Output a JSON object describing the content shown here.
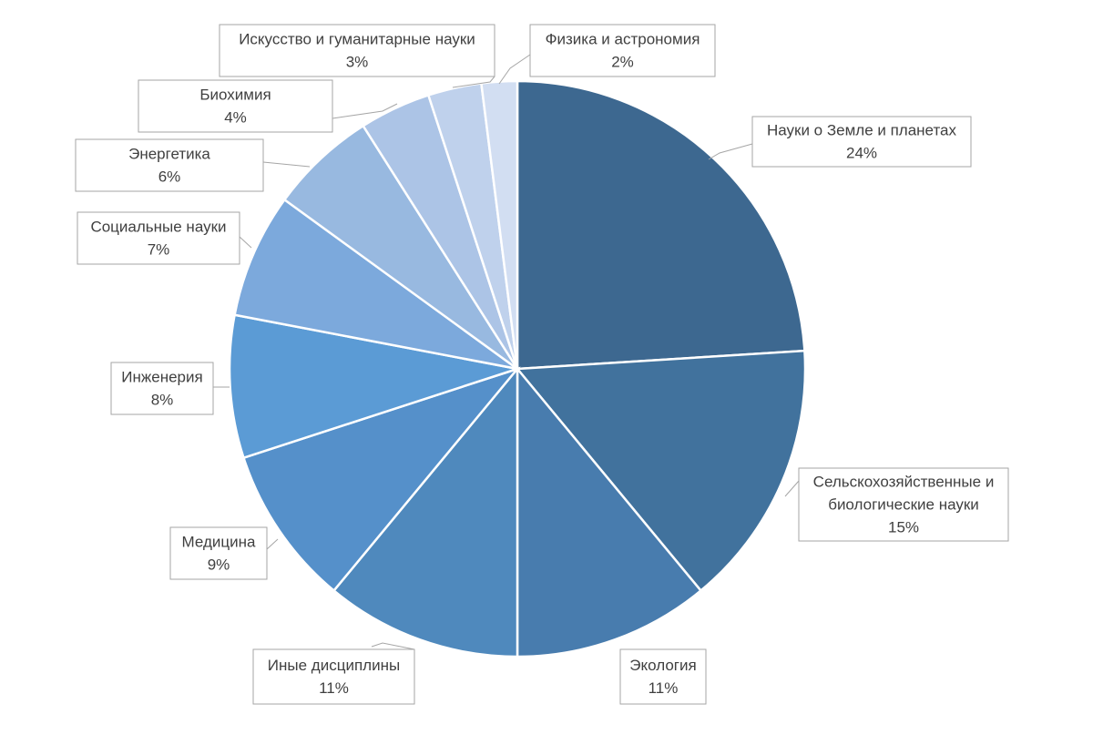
{
  "chart_data": {
    "type": "pie",
    "title": "",
    "slices": [
      {
        "label": "Науки о Земле и планетах",
        "value": 24,
        "value_label": "24%",
        "color": "#3d6890"
      },
      {
        "label": "Сельскохозяйственные и биологические науки",
        "value": 15,
        "value_label": "15%",
        "color": "#41729d"
      },
      {
        "label": "Экология",
        "value": 11,
        "value_label": "11%",
        "color": "#487cae"
      },
      {
        "label": "Иные дисциплины",
        "value": 11,
        "value_label": "11%",
        "color": "#4f89bd"
      },
      {
        "label": "Медицина",
        "value": 9,
        "value_label": "9%",
        "color": "#5590ca"
      },
      {
        "label": "Инженерия",
        "value": 8,
        "value_label": "8%",
        "color": "#5b9bd5"
      },
      {
        "label": "Социальные науки",
        "value": 7,
        "value_label": "7%",
        "color": "#7ca9dc"
      },
      {
        "label": "Энергетика",
        "value": 6,
        "value_label": "6%",
        "color": "#98b9e0"
      },
      {
        "label": "Биохимия",
        "value": 4,
        "value_label": "4%",
        "color": "#acc4e6"
      },
      {
        "label": "Искусство и гуманитарные науки",
        "value": 3,
        "value_label": "3%",
        "color": "#bfd1ec"
      },
      {
        "label": "Физика и астрономия",
        "value": 2,
        "value_label": "2%",
        "color": "#d2def2"
      }
    ],
    "legend": "none",
    "data_labels": "callouts"
  }
}
